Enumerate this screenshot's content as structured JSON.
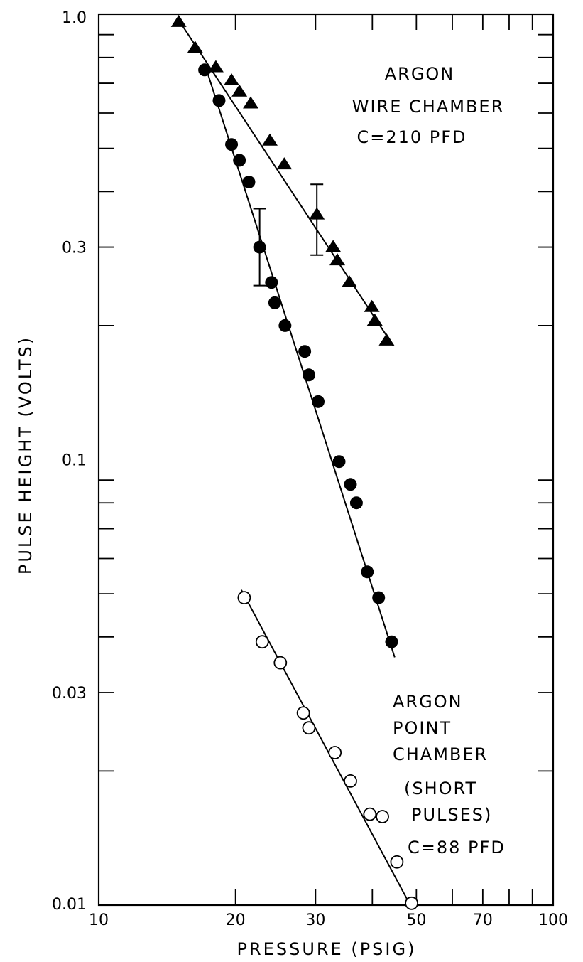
{
  "chart_data": {
    "type": "scatter",
    "x_scale": "log",
    "y_scale": "log",
    "xlim": [
      10,
      100
    ],
    "ylim": [
      0.01,
      1.0
    ],
    "xlabel": "PRESSURE (PSIG)",
    "ylabel": "PULSE HEIGHT (VOLTS)",
    "x_ticks": [
      10,
      20,
      30,
      50,
      70,
      100
    ],
    "x_tick_labels": [
      "10",
      "20",
      "30",
      "50",
      "70",
      "100"
    ],
    "y_ticks": [
      0.01,
      0.03,
      0.1,
      0.3,
      1.0
    ],
    "y_tick_labels": [
      "0.01",
      "0.03",
      "0.1",
      "0.3",
      "1.0"
    ],
    "grid": false,
    "series": [
      {
        "marker": "filled-triangle",
        "color": "#000000",
        "points": [
          [
            15.0,
            0.96
          ],
          [
            16.3,
            0.84
          ],
          [
            18.1,
            0.76
          ],
          [
            19.6,
            0.71
          ],
          [
            20.4,
            0.67
          ],
          [
            21.6,
            0.63
          ],
          [
            23.8,
            0.52
          ],
          [
            25.6,
            0.46
          ],
          [
            30.2,
            0.355
          ],
          [
            32.8,
            0.3
          ],
          [
            33.5,
            0.28
          ],
          [
            35.6,
            0.25
          ],
          [
            39.9,
            0.22
          ],
          [
            40.5,
            0.205
          ],
          [
            43.0,
            0.185
          ]
        ],
        "fit_line": [
          [
            15.0,
            0.97
          ],
          [
            44.5,
            0.18
          ]
        ],
        "error_bar": {
          "x": 30.2,
          "y_low": 0.288,
          "y_high": 0.415
        }
      },
      {
        "marker": "filled-circle",
        "color": "#000000",
        "points": [
          [
            17.1,
            0.75
          ],
          [
            18.4,
            0.64
          ],
          [
            19.6,
            0.51
          ],
          [
            20.4,
            0.47
          ],
          [
            21.4,
            0.42
          ],
          [
            22.6,
            0.3
          ],
          [
            24.0,
            0.25
          ],
          [
            24.4,
            0.225
          ],
          [
            25.7,
            0.2
          ],
          [
            28.4,
            0.175
          ],
          [
            29.0,
            0.155
          ],
          [
            30.4,
            0.135
          ],
          [
            33.8,
            0.099
          ],
          [
            35.8,
            0.088
          ],
          [
            36.9,
            0.08
          ],
          [
            39.0,
            0.056
          ],
          [
            41.3,
            0.049
          ],
          [
            44.1,
            0.039
          ]
        ],
        "fit_line": [
          [
            17.2,
            0.76
          ],
          [
            44.8,
            0.036
          ]
        ],
        "error_bar": {
          "x": 22.6,
          "y_low": 0.246,
          "y_high": 0.366
        }
      },
      {
        "marker": "open-circle",
        "color": "#000000",
        "points": [
          [
            20.9,
            0.049
          ],
          [
            22.9,
            0.039
          ],
          [
            25.1,
            0.035
          ],
          [
            28.2,
            0.027
          ],
          [
            29.0,
            0.025
          ],
          [
            33.1,
            0.022
          ],
          [
            35.8,
            0.019
          ],
          [
            39.5,
            0.016
          ],
          [
            42.1,
            0.0158
          ],
          [
            45.3,
            0.0125
          ],
          [
            48.8,
            0.0101
          ]
        ],
        "fit_line": [
          [
            20.6,
            0.051
          ],
          [
            49.0,
            0.0098
          ]
        ]
      }
    ],
    "annotations": [
      {
        "id": "wire",
        "lines": [
          "ARGON",
          "WIRE CHAMBER",
          "C=210 PFD"
        ]
      },
      {
        "id": "point",
        "lines": [
          "ARGON",
          "POINT",
          "CHAMBER",
          "(SHORT",
          "PULSES)",
          "C=88 PFD"
        ]
      }
    ]
  }
}
